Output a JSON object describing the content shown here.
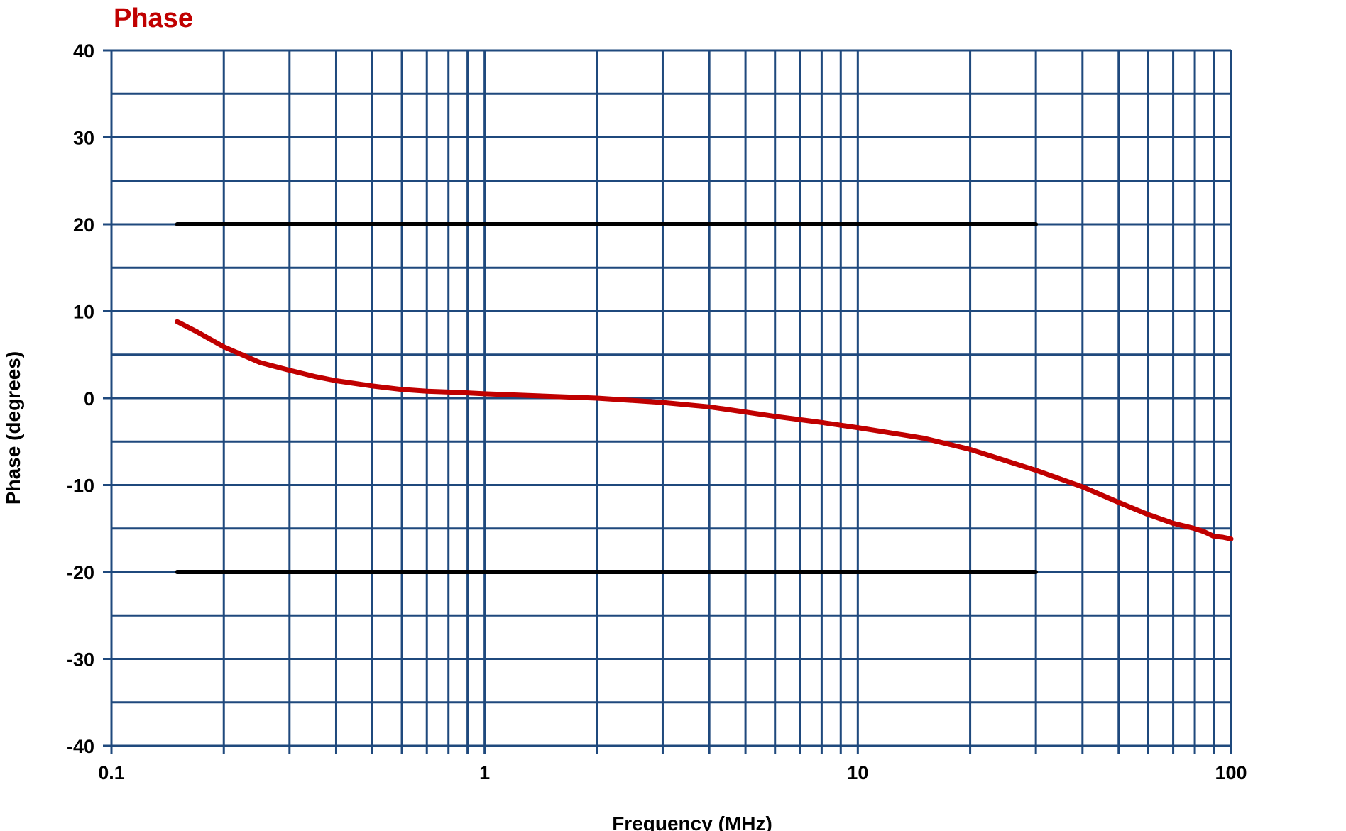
{
  "chart_data": {
    "type": "line",
    "title": "Phase",
    "xlabel": "Frequency (MHz)",
    "ylabel": "Phase (degrees)",
    "x_scale": "log",
    "xlim": [
      0.1,
      100
    ],
    "ylim": [
      -40,
      40
    ],
    "x_ticks": [
      0.1,
      1,
      10,
      100
    ],
    "x_tick_labels": [
      "0.1",
      "1",
      "10",
      "100"
    ],
    "y_ticks": [
      40,
      30,
      20,
      10,
      0,
      -10,
      -20,
      -30,
      -40
    ],
    "y_tick_labels": [
      "40",
      "30",
      "20",
      "10",
      "0",
      "-10",
      "-20",
      "-30",
      "-40"
    ],
    "grid": true,
    "legend": "none",
    "series": [
      {
        "color": "#c00000",
        "x": [
          0.15,
          0.17,
          0.2,
          0.25,
          0.3,
          0.35,
          0.4,
          0.5,
          0.6,
          0.7,
          0.8,
          0.9,
          1,
          1.5,
          2,
          3,
          4,
          5,
          6,
          8,
          10,
          15,
          20,
          30,
          40,
          50,
          60,
          70,
          80,
          85,
          90,
          95,
          100
        ],
        "y": [
          8.8,
          7.6,
          5.9,
          4.1,
          3.2,
          2.5,
          2.0,
          1.4,
          1.0,
          0.8,
          0.7,
          0.6,
          0.5,
          0.2,
          0.0,
          -0.5,
          -1.0,
          -1.6,
          -2.1,
          -2.8,
          -3.4,
          -4.6,
          -5.9,
          -8.3,
          -10.2,
          -12.0,
          -13.4,
          -14.4,
          -15.0,
          -15.4,
          -15.9,
          -16.0,
          -16.2
        ]
      },
      {
        "color": "#000000",
        "x": [
          0.15,
          30
        ],
        "y": [
          20,
          20
        ]
      },
      {
        "color": "#000000",
        "x": [
          0.15,
          30
        ],
        "y": [
          -20,
          -20
        ]
      }
    ]
  },
  "colors": {
    "title": "#c00000",
    "grid": "#1f497d",
    "phase_line": "#c00000",
    "limit_line": "#000000"
  }
}
